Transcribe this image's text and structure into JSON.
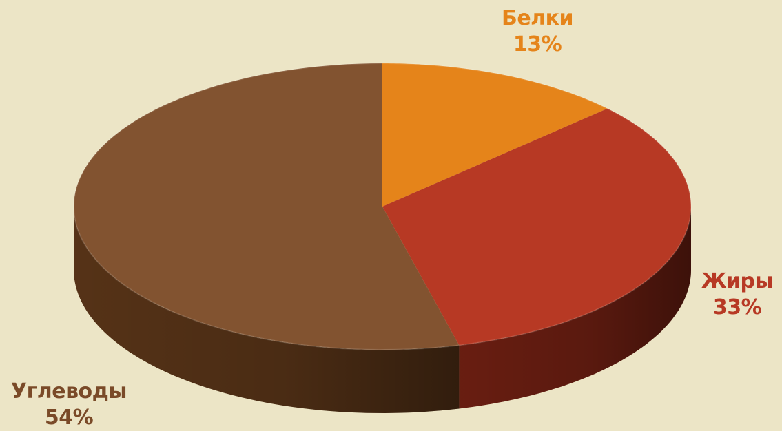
{
  "chart_data": {
    "type": "pie",
    "style": "3d",
    "slices": [
      {
        "label": "Белки",
        "value": 13,
        "value_label": "13%",
        "color": "#e5841a",
        "side_color": "#b5600f",
        "label_color": "#e5841a"
      },
      {
        "label": "Жиры",
        "value": 33,
        "value_label": "33%",
        "color": "#b73924",
        "side_color": "#6e1f12",
        "label_color": "#b73924"
      },
      {
        "label": "Углеводы",
        "value": 54,
        "value_label": "54%",
        "color": "#825330",
        "side_color": "#5a3518",
        "label_color": "#7a4a28"
      }
    ],
    "background": "#ece5c6"
  }
}
